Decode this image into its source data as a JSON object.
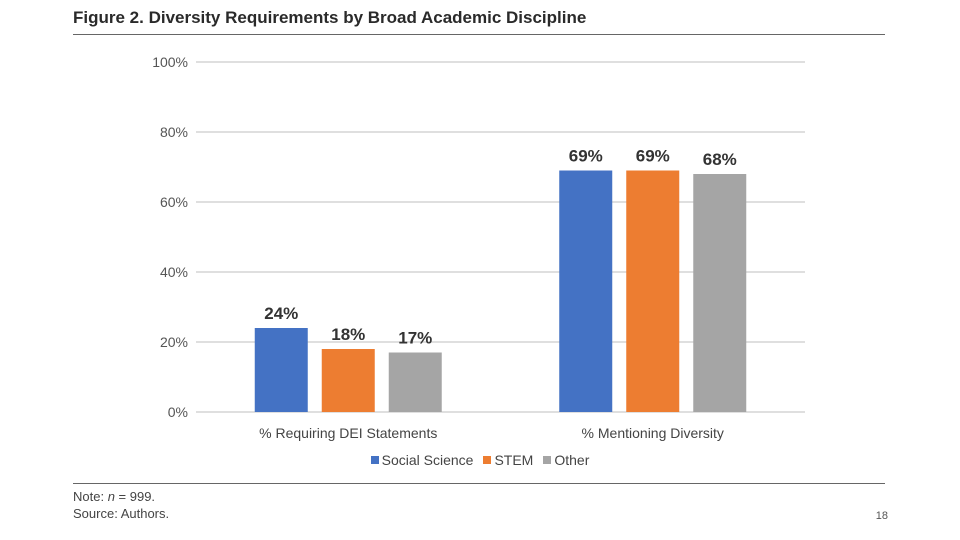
{
  "title": "Figure 2. Diversity Requirements by Broad Academic Discipline",
  "note": {
    "prefix": "Note: ",
    "variable": "n",
    "suffix": " = 999.",
    "source": "Source: Authors."
  },
  "page_number": "18",
  "colors": {
    "social_science": "#4472C4",
    "stem": "#ED7D31",
    "other": "#A5A5A5",
    "grid": "#BFBFBF"
  },
  "chart_data": {
    "type": "bar",
    "categories": [
      "% Requiring DEI Statements",
      "% Mentioning Diversity"
    ],
    "series": [
      {
        "name": "Social Science",
        "values": [
          24,
          69
        ],
        "labels": [
          "24%",
          "69%"
        ],
        "color": "#4472C4"
      },
      {
        "name": "STEM",
        "values": [
          18,
          69
        ],
        "labels": [
          "18%",
          "69%"
        ],
        "color": "#ED7D31"
      },
      {
        "name": "Other",
        "values": [
          17,
          68
        ],
        "labels": [
          "17%",
          "68%"
        ],
        "color": "#A5A5A5"
      }
    ],
    "ylim": [
      0,
      100
    ],
    "yticks": [
      0,
      20,
      40,
      60,
      80,
      100
    ],
    "ytick_labels": [
      "0%",
      "20%",
      "40%",
      "60%",
      "80%",
      "100%"
    ],
    "grid": true,
    "legend_position": "bottom"
  }
}
